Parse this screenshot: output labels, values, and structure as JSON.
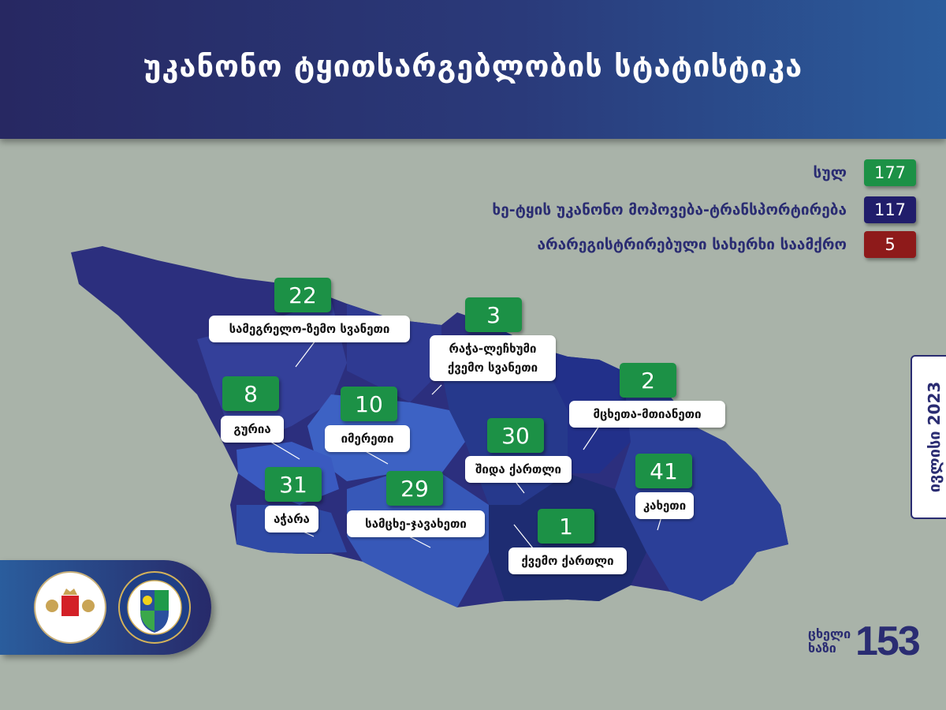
{
  "header": {
    "title": "უკანონო ტყითსარგებლობის სტატისტიკა"
  },
  "legend": [
    {
      "label": "სულ",
      "value": "177",
      "color": "#1c9146"
    },
    {
      "label": "ხე-ტყის უკანონო  მოპოვება-ტრანსპორტირება",
      "value": "117",
      "color": "#201d6b"
    },
    {
      "label": "არარეგისტრირებული სახერხი საამქრო",
      "value": "5",
      "color": "#8e1a1a"
    }
  ],
  "regions": [
    {
      "name": "სამეგრელო-ზემო სვანეთი",
      "value": "22"
    },
    {
      "name": "რაჭა-ლეჩხუმი ქვემო სვანეთი",
      "value": "3"
    },
    {
      "name": "მცხეთა-მთიანეთი",
      "value": "2"
    },
    {
      "name": "გურია",
      "value": "8"
    },
    {
      "name": "იმერეთი",
      "value": "10"
    },
    {
      "name": "შიდა ქართლი",
      "value": "30"
    },
    {
      "name": "კახეთი",
      "value": "41"
    },
    {
      "name": "აჭარა",
      "value": "31"
    },
    {
      "name": "სამცხე-ჯავახეთი",
      "value": "29"
    },
    {
      "name": "ქვემო ქართლი",
      "value": "1"
    }
  ],
  "date": "ივლისი 2023",
  "hotline": {
    "label_line1": "ცხელი",
    "label_line2": "ხაზი",
    "number": "153"
  },
  "logos": {
    "ministry": "Ministry of Environmental Protection and Agriculture of Georgia",
    "agency": "emblem"
  }
}
